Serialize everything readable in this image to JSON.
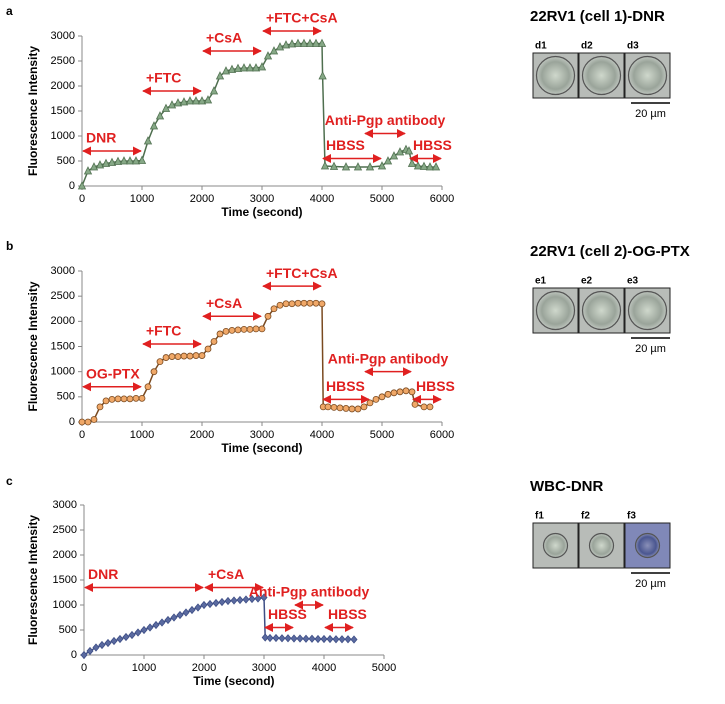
{
  "chart_data": [
    {
      "type": "line",
      "panel": "a",
      "marker": "triangle",
      "xlabel": "Time (second)",
      "ylabel": "Fluorescence Intensity",
      "xlim": [
        0,
        6000
      ],
      "xticks": [
        0,
        1000,
        2000,
        3000,
        4000,
        5000,
        6000
      ],
      "ylim": [
        0,
        3000
      ],
      "yticks": [
        0,
        500,
        1000,
        1500,
        2000,
        2500,
        3000
      ],
      "series": [
        {
          "color": "#4f6f4f",
          "marker_color": "#86a886",
          "x": [
            0,
            100,
            200,
            300,
            400,
            500,
            600,
            700,
            800,
            900,
            1000,
            1100,
            1200,
            1300,
            1400,
            1500,
            1600,
            1700,
            1800,
            1900,
            2000,
            2100,
            2200,
            2300,
            2400,
            2500,
            2600,
            2700,
            2800,
            2900,
            3000,
            3100,
            3200,
            3300,
            3400,
            3500,
            3600,
            3700,
            3800,
            3900,
            4000,
            4010,
            4050,
            4200,
            4400,
            4600,
            4800,
            5000,
            5100,
            5200,
            5300,
            5400,
            5450,
            5500,
            5600,
            5700,
            5800,
            5900
          ],
          "values": [
            0,
            300,
            380,
            420,
            450,
            470,
            490,
            500,
            500,
            500,
            510,
            900,
            1200,
            1400,
            1550,
            1620,
            1660,
            1680,
            1700,
            1700,
            1700,
            1720,
            1900,
            2200,
            2300,
            2330,
            2350,
            2360,
            2360,
            2360,
            2380,
            2600,
            2700,
            2780,
            2820,
            2840,
            2850,
            2850,
            2850,
            2850,
            2850,
            2200,
            400,
            390,
            380,
            380,
            380,
            400,
            500,
            600,
            680,
            730,
            700,
            450,
            400,
            390,
            380,
            380
          ]
        }
      ],
      "annotations": [
        {
          "text": "DNR",
          "x": [
            0,
            1000
          ],
          "y": 700
        },
        {
          "text": "+FTC",
          "x": [
            1000,
            2000
          ],
          "y": 1900
        },
        {
          "text": "+CsA",
          "x": [
            2000,
            3000
          ],
          "y": 2700
        },
        {
          "text": "+FTC+CsA",
          "x": [
            3000,
            4000
          ],
          "y": 3100
        },
        {
          "text": "HBSS",
          "x": [
            4000,
            5000
          ],
          "y": 550
        },
        {
          "text": "Anti-Pgp antibody",
          "x": [
            4700,
            5400
          ],
          "y": 1050
        },
        {
          "text": "HBSS",
          "x": [
            5450,
            6000
          ],
          "y": 550
        }
      ],
      "side_title": "22RV1 (cell 1)-DNR",
      "image_labels": [
        "d1",
        "d2",
        "d3"
      ],
      "scale_bar": "20 µm"
    },
    {
      "type": "line",
      "panel": "b",
      "marker": "circle",
      "xlabel": "Time (second)",
      "ylabel": "Fluorescence Intensity",
      "xlim": [
        0,
        6000
      ],
      "xticks": [
        0,
        1000,
        2000,
        3000,
        4000,
        5000,
        6000
      ],
      "ylim": [
        0,
        3000
      ],
      "yticks": [
        0,
        500,
        1000,
        1500,
        2000,
        2500,
        3000
      ],
      "series": [
        {
          "color": "#7a4a20",
          "marker_color": "#f0a868",
          "x": [
            0,
            100,
            200,
            300,
            400,
            500,
            600,
            700,
            800,
            900,
            1000,
            1100,
            1200,
            1300,
            1400,
            1500,
            1600,
            1700,
            1800,
            1900,
            2000,
            2100,
            2200,
            2300,
            2400,
            2500,
            2600,
            2700,
            2800,
            2900,
            3000,
            3100,
            3200,
            3300,
            3400,
            3500,
            3600,
            3700,
            3800,
            3900,
            4000,
            4020,
            4100,
            4200,
            4300,
            4400,
            4500,
            4600,
            4700,
            4800,
            4900,
            5000,
            5100,
            5200,
            5300,
            5400,
            5500,
            5550,
            5700,
            5800
          ],
          "values": [
            0,
            0,
            50,
            300,
            420,
            450,
            460,
            460,
            460,
            470,
            470,
            700,
            1000,
            1200,
            1280,
            1300,
            1300,
            1310,
            1310,
            1320,
            1320,
            1450,
            1600,
            1750,
            1800,
            1820,
            1830,
            1840,
            1840,
            1850,
            1850,
            2100,
            2250,
            2320,
            2350,
            2350,
            2360,
            2360,
            2360,
            2360,
            2350,
            300,
            300,
            290,
            280,
            270,
            260,
            260,
            300,
            380,
            450,
            500,
            550,
            580,
            600,
            620,
            600,
            350,
            300,
            300
          ]
        }
      ],
      "annotations": [
        {
          "text": "OG-PTX",
          "x": [
            0,
            1000
          ],
          "y": 700
        },
        {
          "text": "+FTC",
          "x": [
            1000,
            2000
          ],
          "y": 1550
        },
        {
          "text": "+CsA",
          "x": [
            2000,
            3000
          ],
          "y": 2100
        },
        {
          "text": "+FTC+CsA",
          "x": [
            3000,
            4000
          ],
          "y": 2700
        },
        {
          "text": "HBSS",
          "x": [
            4000,
            4800
          ],
          "y": 450
        },
        {
          "text": "Anti-Pgp antibody",
          "x": [
            4700,
            5500
          ],
          "y": 1000
        },
        {
          "text": "HBSS",
          "x": [
            5500,
            6000
          ],
          "y": 450
        }
      ],
      "side_title": "22RV1 (cell 2)-OG-PTX",
      "image_labels": [
        "e1",
        "e2",
        "e3"
      ],
      "scale_bar": "20 µm"
    },
    {
      "type": "line",
      "panel": "c",
      "marker": "diamond",
      "xlabel": "Time (second)",
      "ylabel": "Fluorescence Intensity",
      "xlim": [
        0,
        5000
      ],
      "xticks": [
        0,
        1000,
        2000,
        3000,
        4000,
        5000
      ],
      "ylim": [
        0,
        3000
      ],
      "yticks": [
        0,
        500,
        1000,
        1500,
        2000,
        2500,
        3000
      ],
      "series": [
        {
          "color": "#3f4f86",
          "marker_color": "#5a6aa0",
          "x": [
            0,
            100,
            200,
            300,
            400,
            500,
            600,
            700,
            800,
            900,
            1000,
            1100,
            1200,
            1300,
            1400,
            1500,
            1600,
            1700,
            1800,
            1900,
            2000,
            2100,
            2200,
            2300,
            2400,
            2500,
            2600,
            2700,
            2800,
            2900,
            3000,
            3020,
            3100,
            3200,
            3300,
            3400,
            3500,
            3600,
            3700,
            3800,
            3900,
            4000,
            4100,
            4200,
            4300,
            4400,
            4500
          ],
          "values": [
            0,
            80,
            150,
            200,
            240,
            280,
            320,
            360,
            400,
            450,
            500,
            550,
            600,
            650,
            700,
            750,
            800,
            850,
            900,
            950,
            1000,
            1020,
            1040,
            1060,
            1080,
            1090,
            1100,
            1110,
            1120,
            1130,
            1150,
            350,
            340,
            340,
            335,
            335,
            330,
            330,
            325,
            325,
            320,
            320,
            320,
            315,
            315,
            315,
            310
          ]
        }
      ],
      "annotations": [
        {
          "text": "DNR",
          "x": [
            0,
            2000
          ],
          "y": 1350
        },
        {
          "text": "+CsA",
          "x": [
            2000,
            3000
          ],
          "y": 1350
        },
        {
          "text": "HBSS",
          "x": [
            3000,
            3500
          ],
          "y": 550
        },
        {
          "text": "Anti-Pgp antibody",
          "x": [
            3500,
            4000
          ],
          "y": 1000
        },
        {
          "text": "HBSS",
          "x": [
            4000,
            4500
          ],
          "y": 550
        }
      ],
      "side_title": "WBC-DNR",
      "image_labels": [
        "f1",
        "f2",
        "f3"
      ],
      "scale_bar": "20 µm"
    }
  ]
}
